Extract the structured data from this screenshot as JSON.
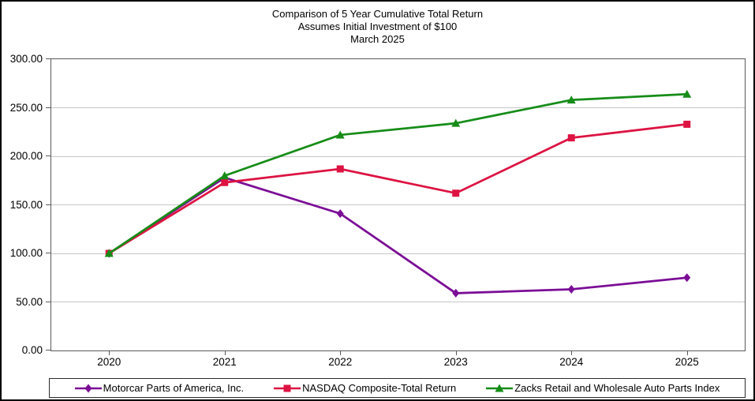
{
  "chart_data": {
    "type": "line",
    "title": "Comparison of 5 Year Cumulative Total Return",
    "subtitle": "Assumes Initial Investment of $100",
    "date_label": "March 2025",
    "categories": [
      "2020",
      "2021",
      "2022",
      "2023",
      "2024",
      "2025"
    ],
    "series": [
      {
        "name": "Motorcar Parts of America, Inc.",
        "marker": "diamond",
        "color": "#7B0D96",
        "values": [
          100,
          178,
          141,
          59,
          63,
          75
        ]
      },
      {
        "name": "NASDAQ Composite-Total Return",
        "marker": "square",
        "color": "#DD1342",
        "values": [
          100,
          173,
          187,
          162,
          219,
          233
        ]
      },
      {
        "name": "Zacks Retail and Wholesale Auto Parts Index",
        "marker": "triangle",
        "color": "#168C18",
        "values": [
          100,
          180,
          222,
          234,
          258,
          264
        ]
      }
    ],
    "ylim": [
      0,
      300
    ],
    "ytick_values": [
      0,
      50,
      100,
      150,
      200,
      250,
      300
    ],
    "ytick_labels": [
      "0.00",
      "50.00",
      "100.00",
      "150.00",
      "200.00",
      "250.00",
      "300.00"
    ],
    "xlabel": "",
    "ylabel": "",
    "grid": "horizontal",
    "legend_position": "bottom",
    "colors": {
      "gridline": "#C6C6C6",
      "axis": "#595959",
      "text": "#000000"
    }
  }
}
